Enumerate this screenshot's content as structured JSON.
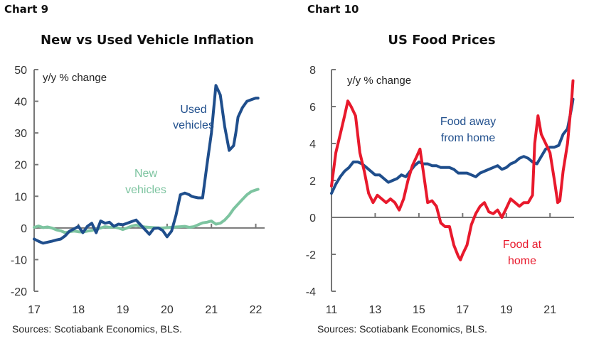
{
  "chart_data": [
    {
      "type": "line",
      "label": "Chart 9",
      "title": "New vs Used Vehicle Inflation",
      "unit_label": "y/y % change",
      "xlabel": "",
      "ylabel": "",
      "xlim": [
        2017,
        2022.2
      ],
      "ylim": [
        -20,
        50
      ],
      "yticks": [
        50,
        40,
        30,
        20,
        10,
        0,
        -10,
        -20
      ],
      "xticks": [
        "17",
        "18",
        "19",
        "20",
        "21",
        "22"
      ],
      "grid": false,
      "source": "Sources: Scotiabank Economics, BLS.",
      "series": [
        {
          "name": "New vehicles",
          "label_lines": [
            "New",
            "vehicles"
          ],
          "color": "#7dc4a0",
          "x": [
            2017.0,
            2017.1,
            2017.2,
            2017.3,
            2017.4,
            2017.5,
            2017.6,
            2017.7,
            2017.8,
            2017.9,
            2018.0,
            2018.1,
            2018.2,
            2018.3,
            2018.4,
            2018.5,
            2018.6,
            2018.7,
            2018.8,
            2018.9,
            2019.0,
            2019.1,
            2019.2,
            2019.3,
            2019.4,
            2019.5,
            2019.6,
            2019.7,
            2019.8,
            2019.9,
            2020.0,
            2020.1,
            2020.2,
            2020.3,
            2020.4,
            2020.5,
            2020.6,
            2020.7,
            2020.8,
            2020.9,
            2021.0,
            2021.1,
            2021.2,
            2021.3,
            2021.4,
            2021.5,
            2021.6,
            2021.7,
            2021.8,
            2021.9,
            2022.0,
            2022.05
          ],
          "values": [
            0.2,
            0.6,
            0.1,
            0.3,
            0.0,
            -0.6,
            -0.9,
            -1.5,
            -1.2,
            -1.0,
            -1.2,
            -1.3,
            -1.0,
            -0.8,
            -0.4,
            0.0,
            0.4,
            0.2,
            0.3,
            0.0,
            -0.5,
            0.0,
            0.6,
            0.9,
            0.5,
            0.3,
            0.2,
            0.1,
            0.0,
            0.0,
            0.1,
            0.2,
            0.3,
            0.4,
            0.5,
            0.2,
            0.4,
            1.0,
            1.6,
            1.8,
            2.2,
            1.2,
            1.5,
            2.5,
            4.0,
            6.0,
            7.5,
            9.0,
            10.5,
            11.5,
            12.0,
            12.2
          ]
        },
        {
          "name": "Used vehicles",
          "label_lines": [
            "Used",
            "vehicles"
          ],
          "color": "#1f4e8c",
          "x": [
            2017.0,
            2017.1,
            2017.2,
            2017.3,
            2017.4,
            2017.5,
            2017.6,
            2017.7,
            2017.8,
            2017.9,
            2018.0,
            2018.1,
            2018.2,
            2018.3,
            2018.4,
            2018.5,
            2018.6,
            2018.7,
            2018.8,
            2018.9,
            2019.0,
            2019.1,
            2019.2,
            2019.3,
            2019.4,
            2019.5,
            2019.6,
            2019.7,
            2019.8,
            2019.9,
            2020.0,
            2020.1,
            2020.2,
            2020.3,
            2020.4,
            2020.5,
            2020.55,
            2020.6,
            2020.7,
            2020.8,
            2020.9,
            2021.0,
            2021.1,
            2021.2,
            2021.3,
            2021.4,
            2021.5,
            2021.55,
            2021.6,
            2021.7,
            2021.8,
            2021.9,
            2022.0,
            2022.05
          ],
          "values": [
            -3.5,
            -4.2,
            -4.8,
            -4.5,
            -4.2,
            -3.8,
            -3.5,
            -2.5,
            -1.0,
            -0.3,
            0.5,
            -1.5,
            0.5,
            1.5,
            -1.5,
            2.2,
            1.5,
            1.8,
            0.5,
            1.2,
            1.0,
            1.5,
            2.0,
            2.5,
            1.0,
            -0.5,
            -2.0,
            -0.2,
            0.0,
            -0.8,
            -2.8,
            -1.0,
            4.0,
            10.5,
            11.0,
            10.5,
            10.0,
            9.8,
            9.5,
            9.5,
            20.0,
            30.0,
            45.0,
            42.0,
            32.0,
            24.5,
            26.0,
            30.0,
            35.0,
            38.0,
            40.0,
            40.5,
            41.0,
            41.0
          ]
        }
      ]
    },
    {
      "type": "line",
      "label": "Chart 10",
      "title": "US Food Prices",
      "unit_label": "y/y % change",
      "xlabel": "",
      "ylabel": "",
      "xlim": [
        2011,
        2022.1
      ],
      "ylim": [
        -4,
        8
      ],
      "yticks": [
        8,
        6,
        4,
        2,
        0,
        -2,
        -4
      ],
      "xticks": [
        "11",
        "13",
        "15",
        "17",
        "19",
        "21"
      ],
      "grid": false,
      "source": "Sources: Scotiabank Economics, BLS.",
      "series": [
        {
          "name": "Food away from home",
          "label_lines": [
            "Food away",
            "from home"
          ],
          "color": "#1f4e8c",
          "x": [
            2011.0,
            2011.2,
            2011.4,
            2011.6,
            2011.8,
            2012.0,
            2012.2,
            2012.4,
            2012.6,
            2012.8,
            2013.0,
            2013.2,
            2013.4,
            2013.6,
            2013.8,
            2014.0,
            2014.2,
            2014.4,
            2014.6,
            2014.8,
            2015.0,
            2015.2,
            2015.4,
            2015.6,
            2015.8,
            2016.0,
            2016.2,
            2016.4,
            2016.6,
            2016.8,
            2017.0,
            2017.2,
            2017.4,
            2017.6,
            2017.8,
            2018.0,
            2018.2,
            2018.4,
            2018.6,
            2018.8,
            2019.0,
            2019.2,
            2019.4,
            2019.6,
            2019.8,
            2020.0,
            2020.2,
            2020.4,
            2020.6,
            2020.8,
            2021.0,
            2021.2,
            2021.4,
            2021.6,
            2021.8,
            2022.0,
            2022.05
          ],
          "values": [
            1.3,
            1.8,
            2.2,
            2.5,
            2.7,
            3.0,
            3.0,
            2.9,
            2.7,
            2.5,
            2.3,
            2.3,
            2.1,
            1.9,
            2.0,
            2.1,
            2.3,
            2.2,
            2.5,
            2.8,
            3.0,
            2.9,
            2.9,
            2.8,
            2.8,
            2.7,
            2.7,
            2.7,
            2.6,
            2.4,
            2.4,
            2.4,
            2.3,
            2.2,
            2.4,
            2.5,
            2.6,
            2.7,
            2.8,
            2.6,
            2.7,
            2.9,
            3.0,
            3.2,
            3.3,
            3.2,
            3.0,
            2.9,
            3.3,
            3.7,
            3.8,
            3.8,
            3.9,
            4.5,
            4.8,
            6.0,
            6.4
          ]
        },
        {
          "name": "Food at home",
          "label_lines": [
            "Food at",
            "home"
          ],
          "color": "#e8192c",
          "x": [
            2011.0,
            2011.2,
            2011.4,
            2011.6,
            2011.75,
            2011.9,
            2012.1,
            2012.3,
            2012.5,
            2012.7,
            2012.9,
            2013.1,
            2013.3,
            2013.5,
            2013.7,
            2013.9,
            2014.1,
            2014.3,
            2014.5,
            2014.7,
            2014.9,
            2015.05,
            2015.2,
            2015.4,
            2015.6,
            2015.8,
            2016.0,
            2016.2,
            2016.4,
            2016.6,
            2016.8,
            2016.9,
            2017.0,
            2017.2,
            2017.4,
            2017.6,
            2017.8,
            2018.0,
            2018.2,
            2018.4,
            2018.6,
            2018.8,
            2019.0,
            2019.2,
            2019.4,
            2019.6,
            2019.8,
            2020.0,
            2020.2,
            2020.3,
            2020.45,
            2020.6,
            2020.8,
            2021.0,
            2021.2,
            2021.35,
            2021.45,
            2021.6,
            2021.8,
            2022.0,
            2022.05
          ],
          "values": [
            1.7,
            3.5,
            4.5,
            5.5,
            6.3,
            6.0,
            5.5,
            3.5,
            2.5,
            1.3,
            0.8,
            1.2,
            1.0,
            0.8,
            1.0,
            0.8,
            0.4,
            1.0,
            2.0,
            2.8,
            3.3,
            3.7,
            2.5,
            0.8,
            0.9,
            0.6,
            -0.3,
            -0.5,
            -0.5,
            -1.5,
            -2.1,
            -2.3,
            -2.0,
            -1.5,
            -0.4,
            0.2,
            0.6,
            0.8,
            0.3,
            0.2,
            0.4,
            0.0,
            0.5,
            1.0,
            0.8,
            0.6,
            0.8,
            0.8,
            1.2,
            4.0,
            5.5,
            4.5,
            4.0,
            3.5,
            2.0,
            0.8,
            0.9,
            2.5,
            4.0,
            6.5,
            7.4
          ]
        }
      ]
    }
  ]
}
